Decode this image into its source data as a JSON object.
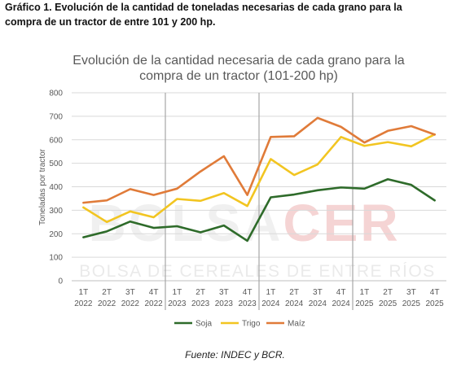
{
  "caption": {
    "line1": "Gráfico 1. Evolución de la cantidad de toneladas necesarias de cada grano para la",
    "line2": "compra de un tractor de entre 101 y 200 hp."
  },
  "watermark": {
    "logo_text": "BOLSACER",
    "subtitle": "BOLSA DE CEREALES DE ENTRE RÍOS"
  },
  "source": "Fuente: INDEC y BCR.",
  "chart_data": {
    "type": "line",
    "title_line1": "Evolución de la cantidad necesaria de cada grano para la",
    "title_line2": "compra de un tractor (101-200 hp)",
    "ylabel": "Toneladas por tractor",
    "xlabel": "",
    "ylim": [
      0,
      800
    ],
    "yticks": [
      0,
      100,
      200,
      300,
      400,
      500,
      600,
      700,
      800
    ],
    "grid": true,
    "legend_position": "bottom",
    "categories": [
      [
        "1T",
        "2022"
      ],
      [
        "2T",
        "2022"
      ],
      [
        "3T",
        "2022"
      ],
      [
        "4T",
        "2022"
      ],
      [
        "1T",
        "2023"
      ],
      [
        "2T",
        "2023"
      ],
      [
        "3T",
        "2023"
      ],
      [
        "4T",
        "2023"
      ],
      [
        "1T",
        "2024"
      ],
      [
        "2T",
        "2024"
      ],
      [
        "3T",
        "2024"
      ],
      [
        "4T",
        "2024"
      ],
      [
        "1T",
        "2025"
      ],
      [
        "2T",
        "2025"
      ],
      [
        "3T",
        "2025"
      ],
      [
        "4T",
        "2025"
      ]
    ],
    "year_separators_after": [
      3,
      7,
      11
    ],
    "series": [
      {
        "name": "Soja",
        "color": "#2e6b2a",
        "values": [
          185,
          210,
          252,
          225,
          232,
          206,
          235,
          170,
          355,
          367,
          385,
          397,
          392,
          432,
          408,
          342
        ]
      },
      {
        "name": "Trigo",
        "color": "#f2c521",
        "values": [
          312,
          250,
          295,
          270,
          348,
          340,
          373,
          318,
          518,
          450,
          495,
          612,
          574,
          590,
          572,
          623
        ]
      },
      {
        "name": "Maíz",
        "color": "#e07b39",
        "values": [
          332,
          342,
          390,
          365,
          392,
          465,
          530,
          365,
          612,
          615,
          693,
          655,
          588,
          638,
          658,
          622
        ]
      }
    ]
  }
}
